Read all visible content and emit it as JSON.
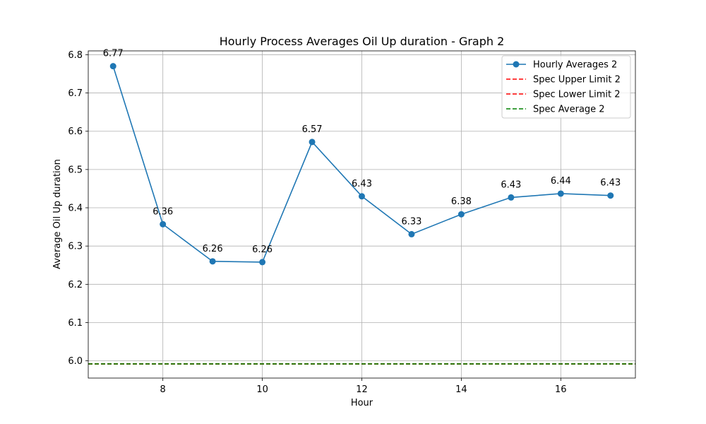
{
  "chart_data": {
    "type": "line",
    "title": "Hourly Process Averages Oil Up duration - Graph 2",
    "xlabel": "Hour",
    "ylabel": "Average Oil Up duration",
    "xlim": [
      6.5,
      17.5
    ],
    "ylim": [
      5.955,
      6.81
    ],
    "xticks": [
      8,
      10,
      12,
      14,
      16
    ],
    "yticks": [
      6.0,
      6.1,
      6.2,
      6.3,
      6.4,
      6.5,
      6.6,
      6.7,
      6.8
    ],
    "grid": true,
    "legend_position": "top-right",
    "series": [
      {
        "name": "Hourly Averages 2",
        "style": "solid-line-with-markers",
        "color": "#1f77b4",
        "x": [
          7,
          8,
          9,
          10,
          11,
          12,
          13,
          14,
          15,
          16,
          17
        ],
        "y": [
          6.77,
          6.357,
          6.26,
          6.258,
          6.572,
          6.43,
          6.331,
          6.383,
          6.427,
          6.437,
          6.432
        ],
        "labels": [
          "6.77",
          "6.36",
          "6.26",
          "6.26",
          "6.57",
          "6.43",
          "6.33",
          "6.38",
          "6.43",
          "6.44",
          "6.43"
        ]
      }
    ],
    "reference_lines": [
      {
        "name": "Spec Upper Limit 2",
        "color": "#ff0000",
        "style": "dashed",
        "y": 5.992
      },
      {
        "name": "Spec Lower Limit 2",
        "color": "#ff0000",
        "style": "dashed",
        "y": 5.992
      },
      {
        "name": "Spec Average 2",
        "color": "#008000",
        "style": "dashed",
        "y": 5.992
      }
    ]
  }
}
